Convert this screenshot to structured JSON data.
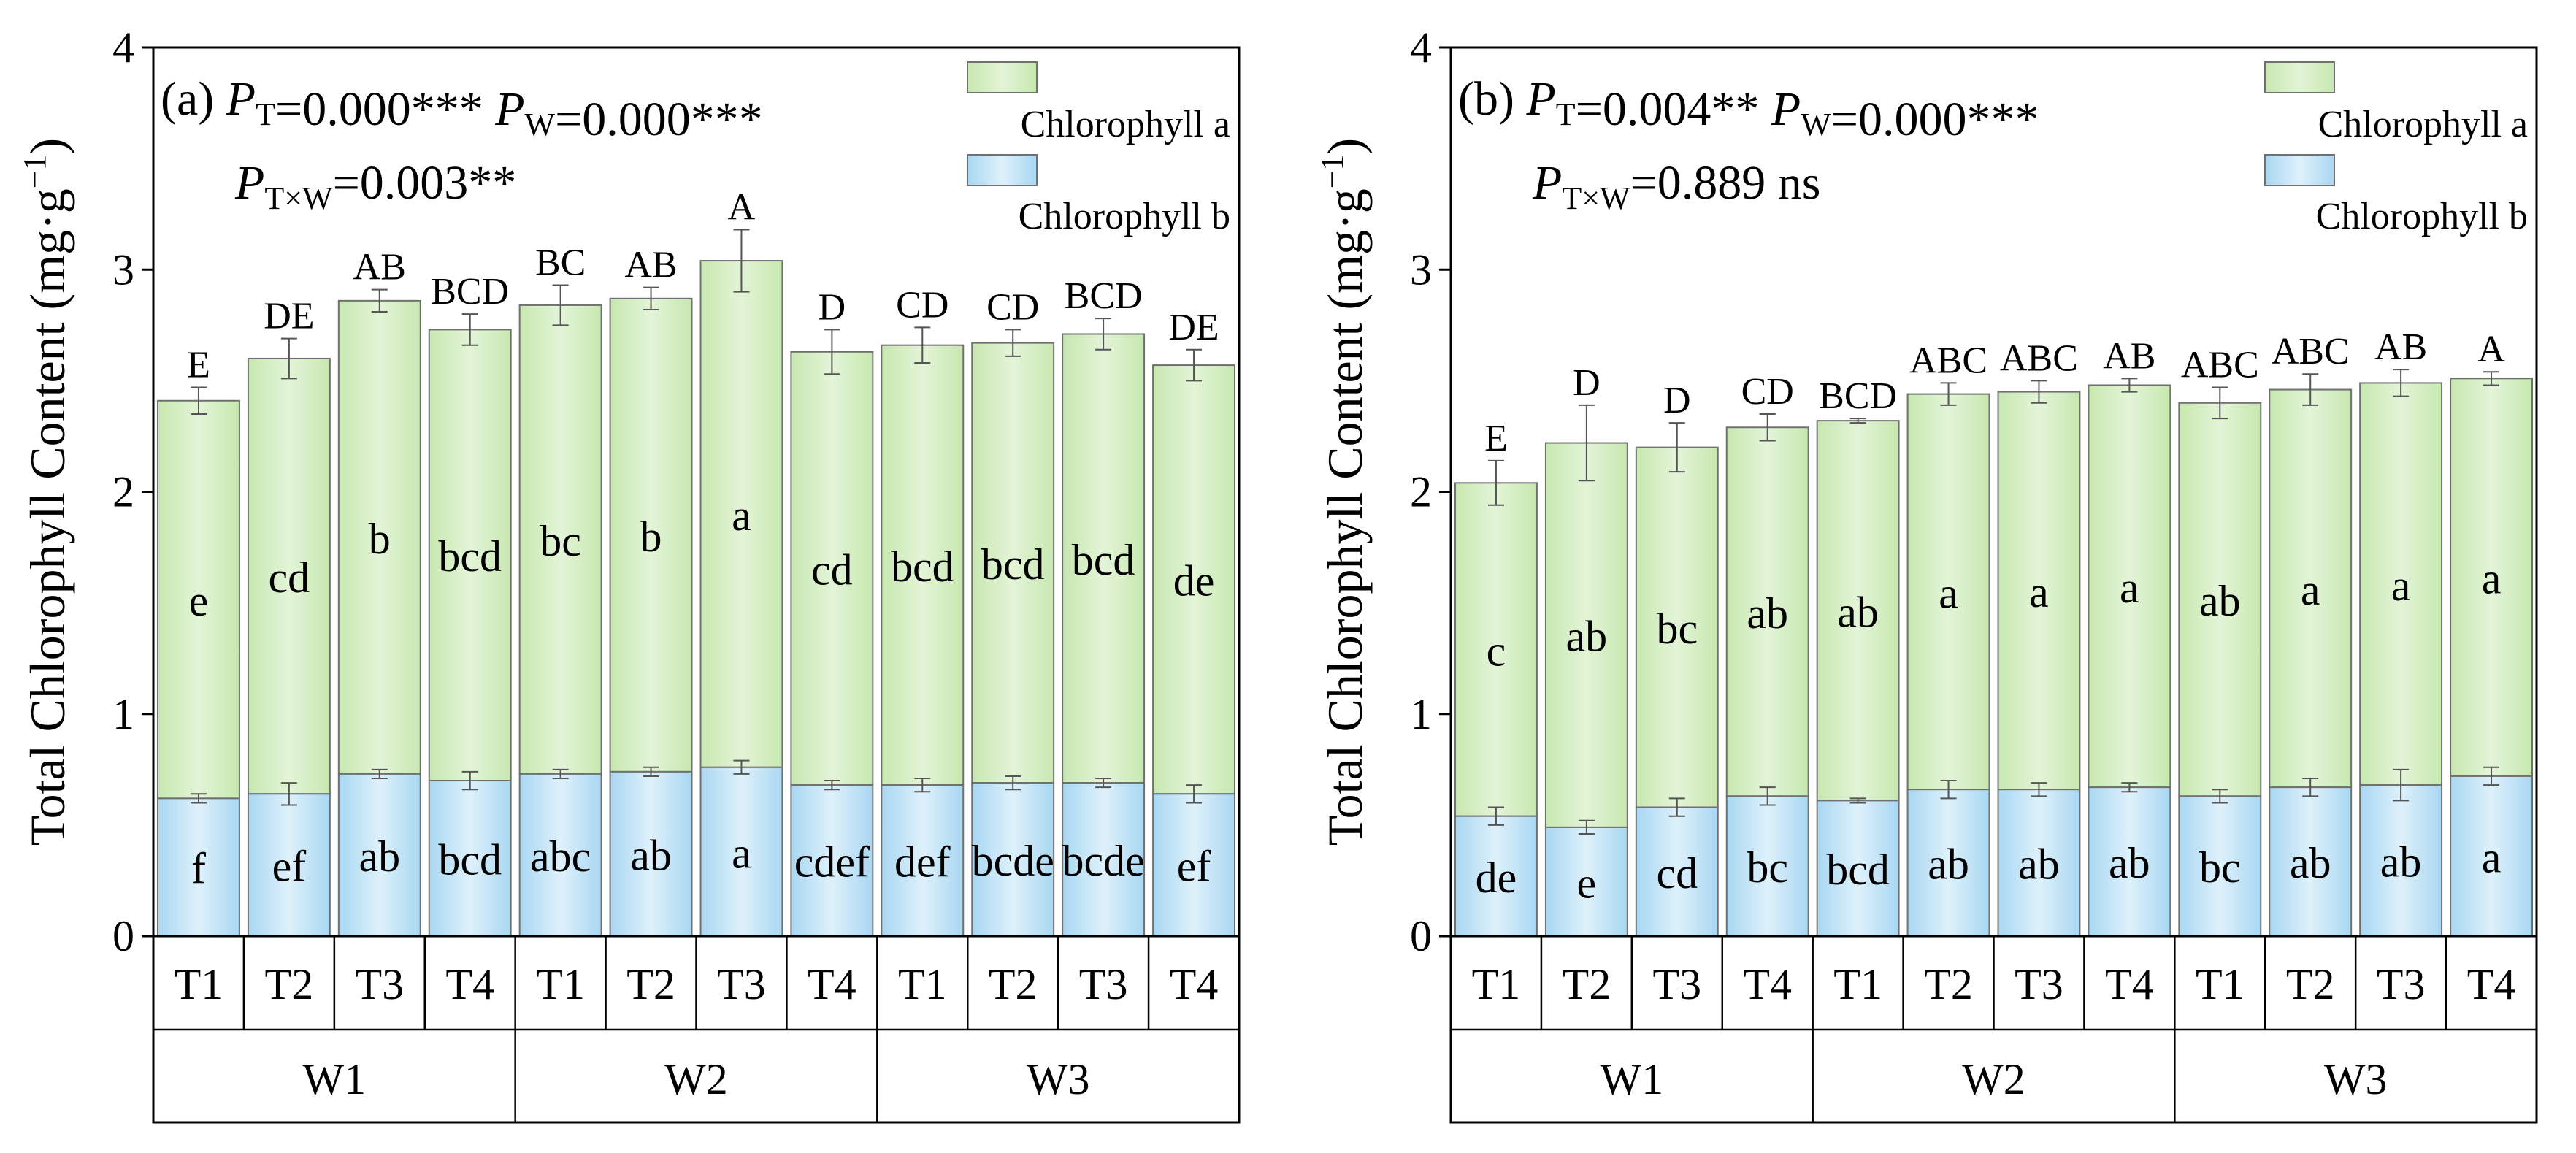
{
  "y_axis_label": "Total Chlorophyll Content (mg·g",
  "y_axis_label_sup": "−1",
  "y_axis_label_close": ")",
  "legend": {
    "chl_a": "Chlorophyll a",
    "chl_b": "Chlorophyll b"
  },
  "colors": {
    "chl_a_fill": "#d2ecc0",
    "chl_b_fill": "#c2e2f6",
    "edge": "#707070",
    "text": "#000000"
  },
  "groups": [
    "W1",
    "W2",
    "W3"
  ],
  "treatments": [
    "T1",
    "T2",
    "T3",
    "T4"
  ],
  "chart_data": [
    {
      "type": "bar",
      "stacked": true,
      "panel": "(a)",
      "ylim": [
        0,
        4
      ],
      "yticks": [
        "0",
        "1",
        "2",
        "3",
        "4"
      ],
      "ylabel": "Total Chlorophyll Content (mg·g−1)",
      "stats": {
        "pt_var": "P",
        "pt_sub": "T",
        "pt_val": "=0.000***",
        "pw_var": "P",
        "pw_sub": "W",
        "pw_val": "=0.000***",
        "ptw_var": "P",
        "ptw_sub": "T×W",
        "ptw_val": "=0.003**"
      },
      "categories": [
        "T1",
        "T2",
        "T3",
        "T4",
        "T1",
        "T2",
        "T3",
        "T4",
        "T1",
        "T2",
        "T3",
        "T4"
      ],
      "series": [
        {
          "name": "Chlorophyll b",
          "values": [
            0.62,
            0.64,
            0.73,
            0.7,
            0.73,
            0.74,
            0.76,
            0.68,
            0.68,
            0.69,
            0.69,
            0.64
          ],
          "errors": [
            0.02,
            0.05,
            0.02,
            0.04,
            0.02,
            0.02,
            0.03,
            0.02,
            0.03,
            0.03,
            0.02,
            0.04
          ],
          "labels": [
            "f",
            "ef",
            "ab",
            "bcd",
            "abc",
            "ab",
            "a",
            "cdef",
            "def",
            "bcde",
            "bcde",
            "ef"
          ]
        },
        {
          "name": "Chlorophyll a",
          "values": [
            1.79,
            1.96,
            2.13,
            2.03,
            2.11,
            2.13,
            2.28,
            1.95,
            1.98,
            1.98,
            2.02,
            1.93
          ]
        },
        {
          "name": "Total",
          "values": [
            2.41,
            2.6,
            2.86,
            2.73,
            2.84,
            2.87,
            3.04,
            2.63,
            2.66,
            2.67,
            2.71,
            2.57
          ],
          "errors": [
            0.06,
            0.09,
            0.05,
            0.07,
            0.09,
            0.05,
            0.14,
            0.1,
            0.08,
            0.06,
            0.07,
            0.07
          ],
          "labels": [
            "E",
            "DE",
            "AB",
            "BCD",
            "BC",
            "AB",
            "A",
            "D",
            "CD",
            "CD",
            "BCD",
            "DE"
          ]
        }
      ],
      "chl_a_labels": [
        "e",
        "cd",
        "b",
        "bcd",
        "bc",
        "b",
        "a",
        "cd",
        "bcd",
        "bcd",
        "bcd",
        "de"
      ]
    },
    {
      "type": "bar",
      "stacked": true,
      "panel": "(b)",
      "ylim": [
        0,
        4
      ],
      "yticks": [
        "0",
        "1",
        "2",
        "3",
        "4"
      ],
      "ylabel": "Total Chlorophyll Content (mg·g−1)",
      "stats": {
        "pt_var": "P",
        "pt_sub": "T",
        "pt_val": "=0.004**",
        "pw_var": "P",
        "pw_sub": "W",
        "pw_val": "=0.000***",
        "ptw_var": "P",
        "ptw_sub": "T×W",
        "ptw_val": "=0.889 ns"
      },
      "categories": [
        "T1",
        "T2",
        "T3",
        "T4",
        "T1",
        "T2",
        "T3",
        "T4",
        "T1",
        "T2",
        "T3",
        "T4"
      ],
      "series": [
        {
          "name": "Chlorophyll b",
          "values": [
            0.54,
            0.49,
            0.58,
            0.63,
            0.61,
            0.66,
            0.66,
            0.67,
            0.63,
            0.67,
            0.68,
            0.72
          ],
          "errors": [
            0.04,
            0.03,
            0.04,
            0.04,
            0.01,
            0.04,
            0.03,
            0.02,
            0.03,
            0.04,
            0.07,
            0.04
          ],
          "labels": [
            "de",
            "e",
            "cd",
            "bc",
            "bcd",
            "ab",
            "ab",
            "ab",
            "bc",
            "ab",
            "ab",
            "a"
          ]
        },
        {
          "name": "Chlorophyll a",
          "values": [
            1.5,
            1.73,
            1.62,
            1.66,
            1.71,
            1.78,
            1.79,
            1.81,
            1.77,
            1.79,
            1.81,
            1.79
          ]
        },
        {
          "name": "Total",
          "values": [
            2.04,
            2.22,
            2.2,
            2.29,
            2.32,
            2.44,
            2.45,
            2.48,
            2.4,
            2.46,
            2.49,
            2.51
          ],
          "errors": [
            0.1,
            0.17,
            0.11,
            0.06,
            0.01,
            0.05,
            0.05,
            0.03,
            0.07,
            0.07,
            0.06,
            0.03
          ],
          "labels": [
            "E",
            "D",
            "D",
            "CD",
            "BCD",
            "ABC",
            "ABC",
            "AB",
            "ABC",
            "ABC",
            "AB",
            "A"
          ]
        }
      ],
      "chl_a_labels": [
        "c",
        "ab",
        "bc",
        "ab",
        "ab",
        "a",
        "a",
        "a",
        "ab",
        "a",
        "a",
        "a"
      ]
    }
  ]
}
